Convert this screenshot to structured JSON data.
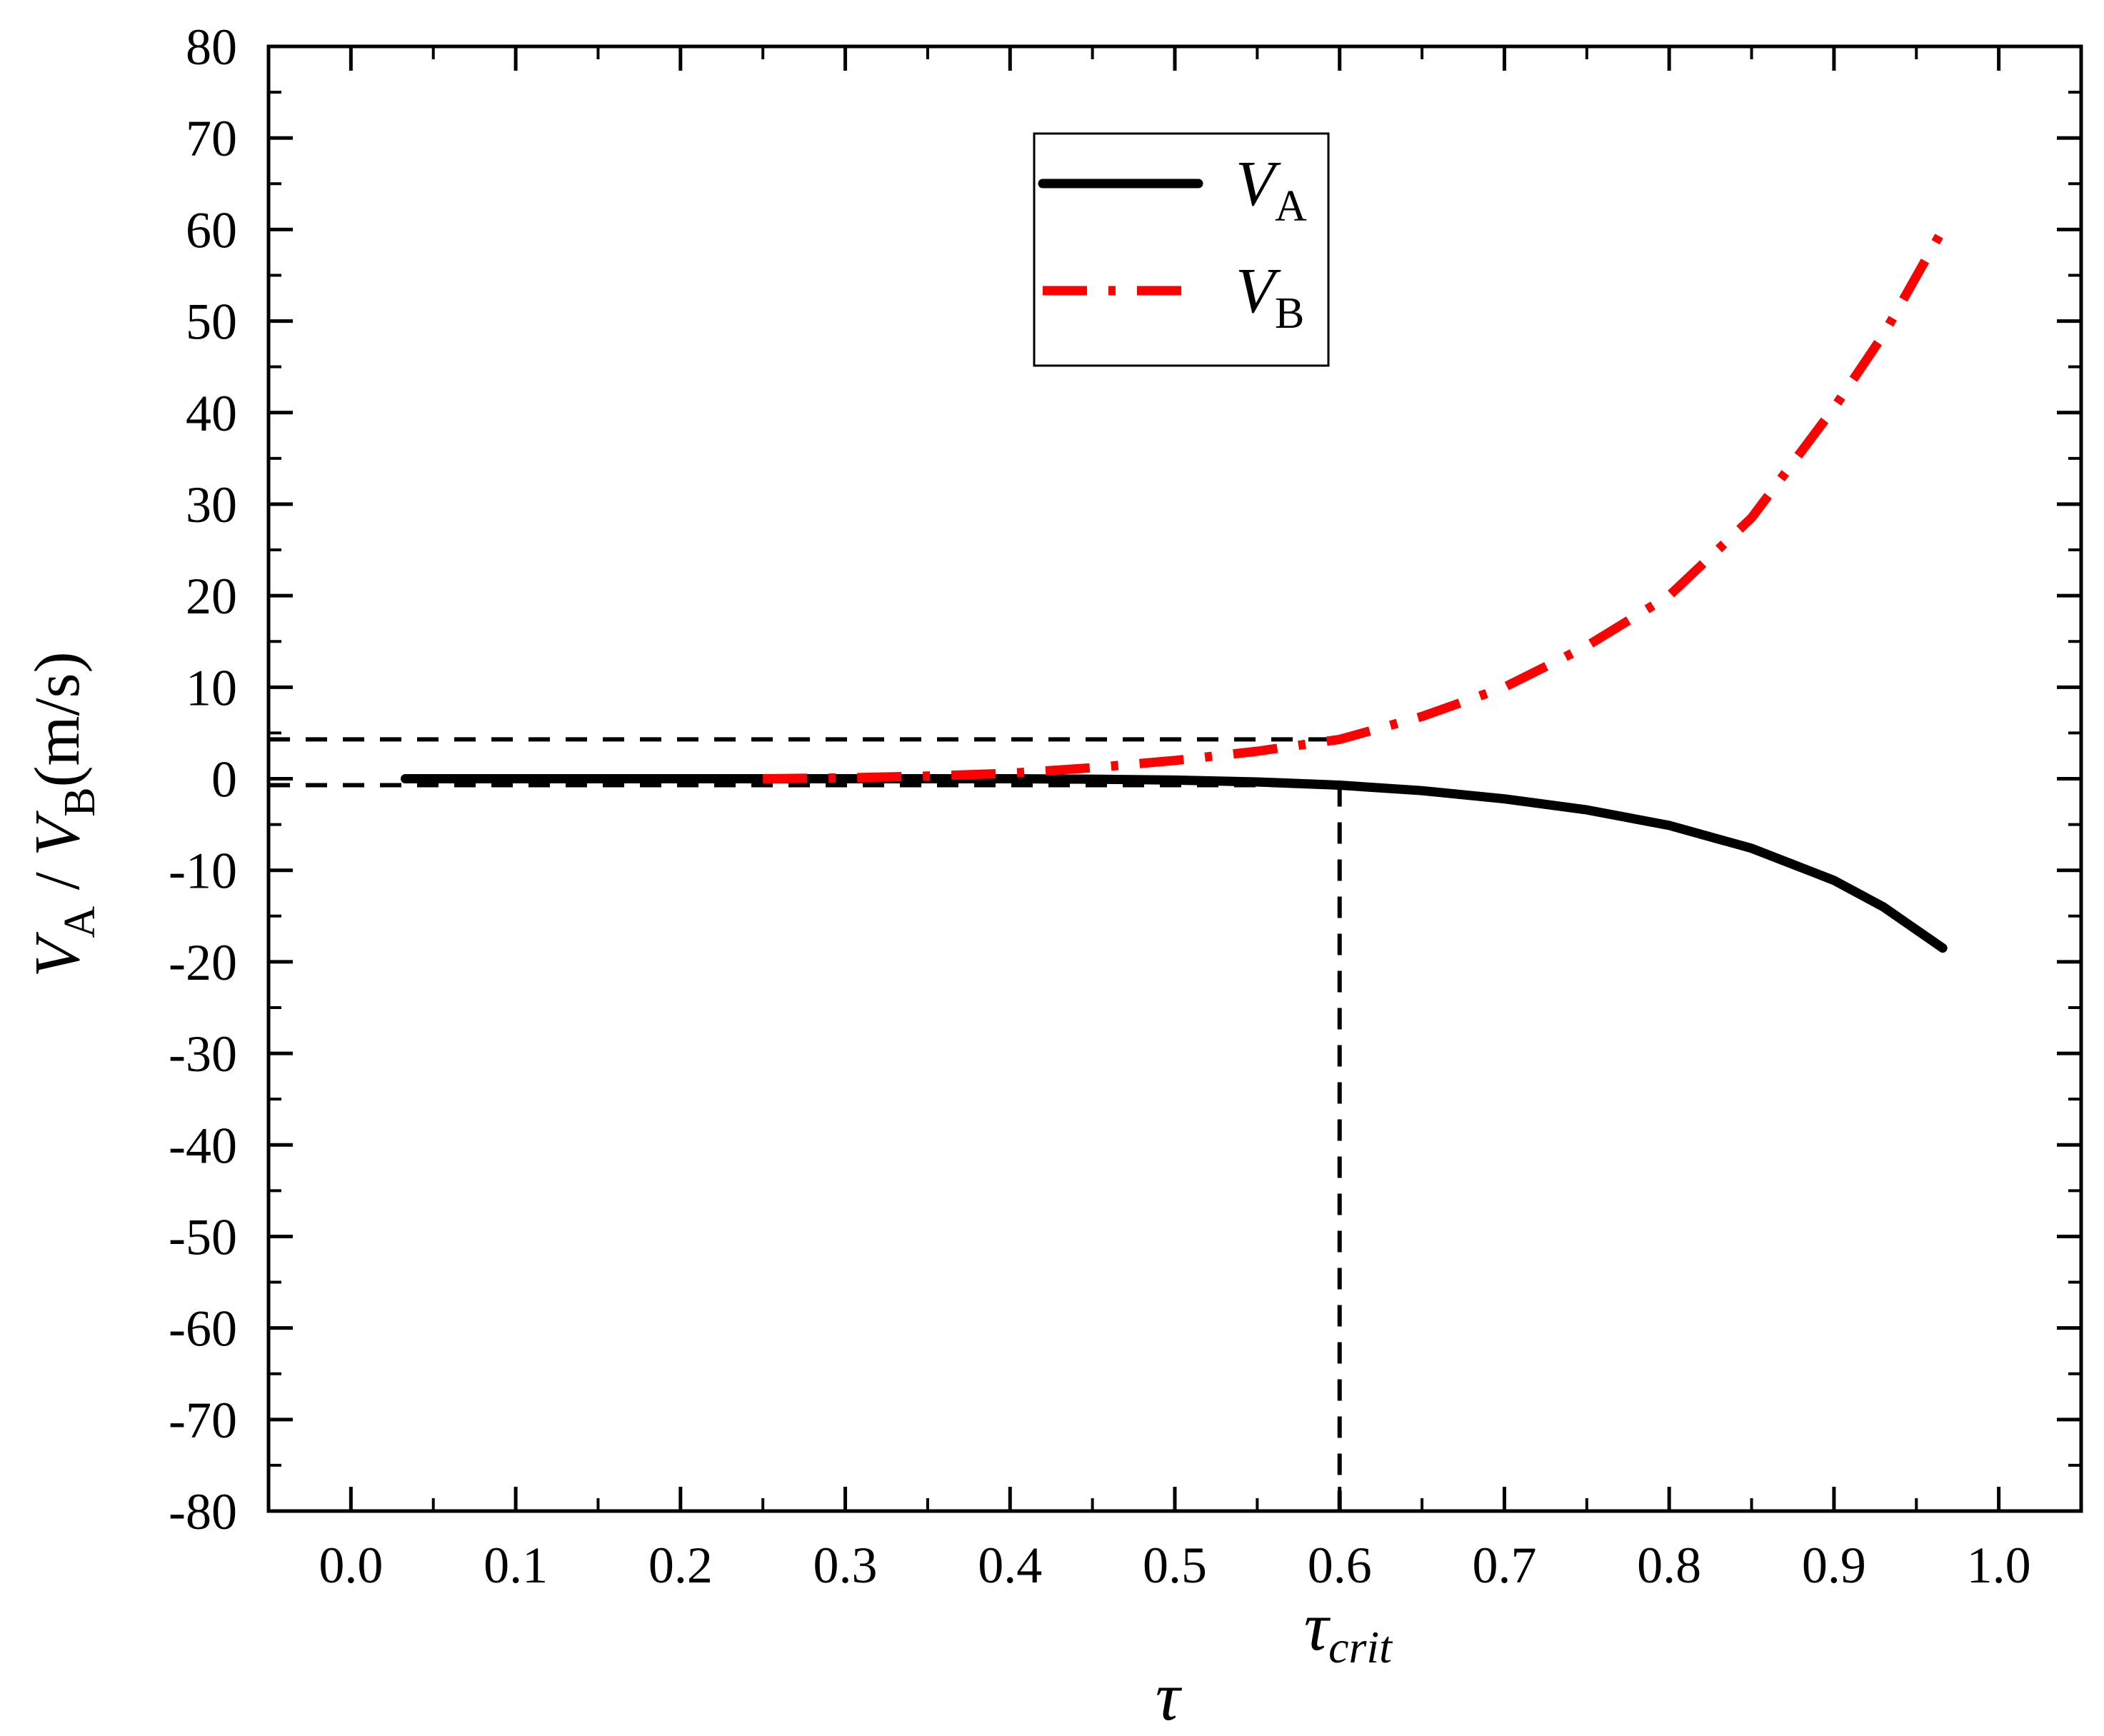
{
  "chart_data": {
    "type": "line",
    "xlabel": "τ",
    "ylabel": {
      "main_a": "V",
      "sub_a": "A",
      "sep": " / ",
      "main_b": "V",
      "sub_b": "B",
      "unit": "(m/s)"
    },
    "xlim": [
      -0.05,
      1.05
    ],
    "ylim": [
      -80,
      80
    ],
    "x_ticks": [
      0.0,
      0.1,
      0.2,
      0.3,
      0.4,
      0.5,
      0.6,
      0.7,
      0.8,
      0.9,
      1.0
    ],
    "x_tick_labels": [
      "0.0",
      "0.1",
      "0.2",
      "0.3",
      "0.4",
      "0.5",
      "0.6",
      "0.7",
      "0.8",
      "0.9",
      "1.0"
    ],
    "y_ticks": [
      -80,
      -70,
      -60,
      -50,
      -40,
      -30,
      -20,
      -10,
      0,
      10,
      20,
      30,
      40,
      50,
      60,
      70,
      80
    ],
    "y_tick_labels": [
      "-80",
      "-70",
      "-60",
      "-50",
      "-40",
      "-30",
      "-20",
      "-10",
      "0",
      "10",
      "20",
      "30",
      "40",
      "50",
      "60",
      "70",
      "80"
    ],
    "grid": false,
    "legend_position": "top-center",
    "series": [
      {
        "name": "V_A",
        "legend_main": "V",
        "legend_sub": "A",
        "color": "#000000",
        "style": "solid",
        "x": [
          0.033,
          0.1,
          0.2,
          0.3,
          0.4,
          0.45,
          0.5,
          0.55,
          0.6,
          0.65,
          0.7,
          0.75,
          0.8,
          0.85,
          0.9,
          0.93,
          0.966
        ],
        "y": [
          0.0,
          0.0,
          0.0,
          0.0,
          0.0,
          -0.05,
          -0.15,
          -0.35,
          -0.7,
          -1.3,
          -2.2,
          -3.4,
          -5.1,
          -7.6,
          -11.1,
          -14.0,
          -18.5
        ]
      },
      {
        "name": "V_B",
        "legend_main": "V",
        "legend_sub": "B",
        "color": "#ff0000",
        "style": "dashdot",
        "x": [
          0.25,
          0.3,
          0.35,
          0.4,
          0.45,
          0.5,
          0.55,
          0.6,
          0.65,
          0.7,
          0.75,
          0.8,
          0.85,
          0.9,
          0.93,
          0.966
        ],
        "y": [
          0.0,
          0.1,
          0.3,
          0.6,
          1.2,
          2.0,
          3.0,
          4.3,
          6.8,
          10.0,
          14.5,
          20.0,
          28.5,
          40.5,
          48.5,
          60.0
        ]
      }
    ],
    "annotations": {
      "critical_x": 0.6,
      "critical_label": "τ",
      "critical_label_sub": "crit",
      "critical_label_color": "#ff0000",
      "hline_upper_y": 4.3,
      "hline_lower_y": -0.7
    }
  }
}
